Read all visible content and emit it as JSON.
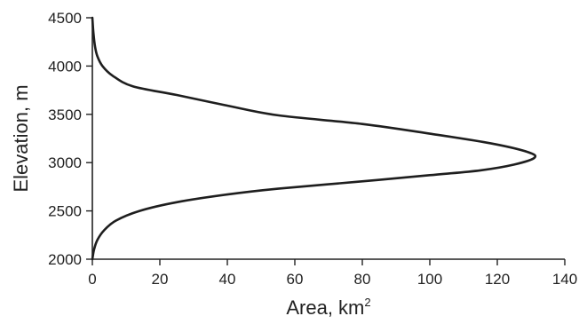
{
  "chart_data": {
    "type": "line",
    "title": "",
    "xlabel": "Area, km",
    "xlabel_superscript": "2",
    "ylabel": "Elevation, m",
    "xlim": [
      0,
      140
    ],
    "ylim": [
      2000,
      4500
    ],
    "xticks": [
      "0",
      "20",
      "40",
      "60",
      "80",
      "100",
      "120",
      "140"
    ],
    "yticks": [
      "2000",
      "2500",
      "3000",
      "3500",
      "4000",
      "4500"
    ],
    "grid": false,
    "legend": "none",
    "series": [
      {
        "color": "#1e1e1e",
        "points": [
          {
            "x": 0,
            "y": 2000
          },
          {
            "x": 0.5,
            "y": 2100
          },
          {
            "x": 1.5,
            "y": 2200
          },
          {
            "x": 3.5,
            "y": 2300
          },
          {
            "x": 7,
            "y": 2400
          },
          {
            "x": 14,
            "y": 2500
          },
          {
            "x": 25,
            "y": 2590
          },
          {
            "x": 40,
            "y": 2670
          },
          {
            "x": 55,
            "y": 2730
          },
          {
            "x": 78,
            "y": 2800
          },
          {
            "x": 100,
            "y": 2870
          },
          {
            "x": 115,
            "y": 2920
          },
          {
            "x": 125,
            "y": 2980
          },
          {
            "x": 131,
            "y": 3050
          },
          {
            "x": 129,
            "y": 3110
          },
          {
            "x": 118,
            "y": 3200
          },
          {
            "x": 100,
            "y": 3300
          },
          {
            "x": 80,
            "y": 3400
          },
          {
            "x": 55,
            "y": 3490
          },
          {
            "x": 40,
            "y": 3590
          },
          {
            "x": 25,
            "y": 3700
          },
          {
            "x": 12,
            "y": 3790
          },
          {
            "x": 6,
            "y": 3900
          },
          {
            "x": 3,
            "y": 4000
          },
          {
            "x": 1.5,
            "y": 4100
          },
          {
            "x": 0.8,
            "y": 4200
          },
          {
            "x": 0.3,
            "y": 4350
          },
          {
            "x": 0,
            "y": 4500
          }
        ]
      }
    ]
  }
}
